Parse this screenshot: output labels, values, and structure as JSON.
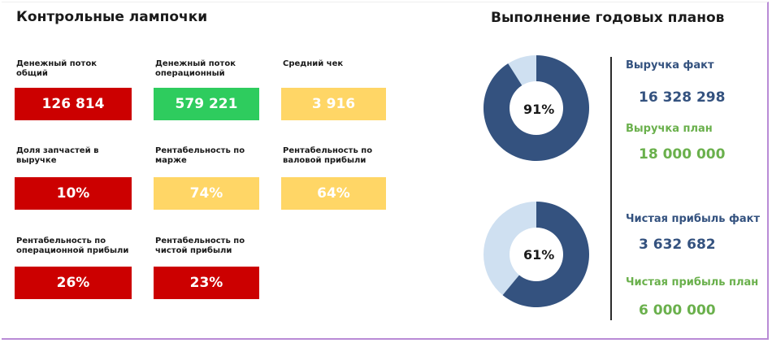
{
  "left_title": "Контрольные лампочки",
  "right_title": "Выполнение годовых планов",
  "lamps": [
    {
      "label": "Денежный поток общий",
      "value": "126 814",
      "color": "#cc0000"
    },
    {
      "label": "Денежный поток операционный",
      "value": "579 221",
      "color": "#2ecc5e"
    },
    {
      "label": "Средний чек",
      "value": "3 916",
      "color": "#ffd666"
    },
    {
      "label": "Доля запчастей в выручке",
      "value": "10%",
      "color": "#cc0000"
    },
    {
      "label": "Рентабельность по марже",
      "value": "74%",
      "color": "#ffd666"
    },
    {
      "label": "Рентабельность по валовой прибыли",
      "value": "64%",
      "color": "#ffd666"
    },
    {
      "label": "Рентабельность по операционной прибыли",
      "value": "26%",
      "color": "#cc0000"
    },
    {
      "label": "Рентабельность по чистой прибыли",
      "value": "23%",
      "color": "#cc0000"
    }
  ],
  "plans": [
    {
      "percent_label": "91%",
      "fraction": 0.91,
      "fact_label": "Выручка факт",
      "fact_value": "16 328 298",
      "plan_label": "Выручка план",
      "plan_value": "18 000 000"
    },
    {
      "percent_label": "61%",
      "fraction": 0.61,
      "fact_label": "Чистая прибыль факт",
      "fact_value": "3 632 682",
      "plan_label": "Чистая прибыль план",
      "plan_value": "6 000 000"
    }
  ],
  "colors": {
    "donut_fill": "#34527f",
    "donut_rest": "#cfe0f1",
    "fact_text": "#34527f",
    "plan_text": "#6ab04c"
  }
}
